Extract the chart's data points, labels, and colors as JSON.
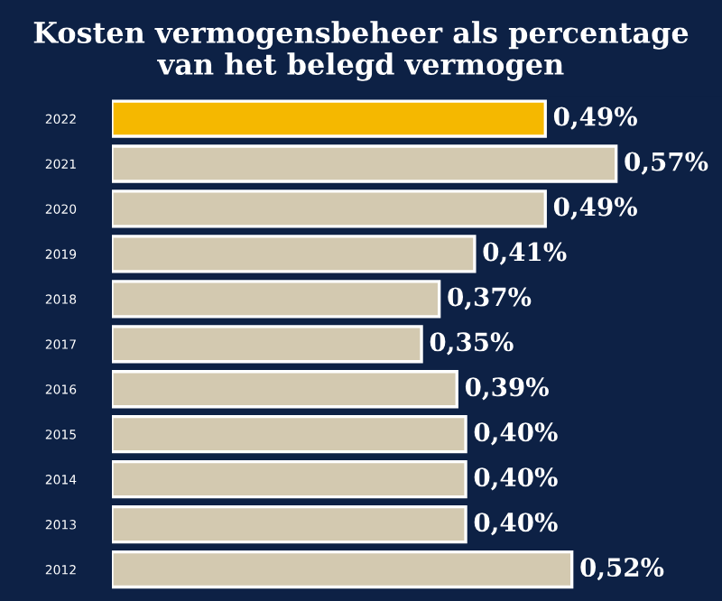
{
  "chart_data": {
    "type": "bar",
    "orientation": "horizontal",
    "title": "Kosten vermogensbeheer als percentage\nvan het belegd vermogen",
    "categories": [
      "2022",
      "2021",
      "2020",
      "2019",
      "2018",
      "2017",
      "2016",
      "2015",
      "2014",
      "2013",
      "2012"
    ],
    "values": [
      0.49,
      0.57,
      0.49,
      0.41,
      0.37,
      0.35,
      0.39,
      0.4,
      0.4,
      0.4,
      0.52
    ],
    "colors": [
      "#f5b800",
      "#d3c9b0",
      "#d3c9b0",
      "#d3c9b0",
      "#d3c9b0",
      "#d3c9b0",
      "#d3c9b0",
      "#d3c9b0",
      "#d3c9b0",
      "#d3c9b0",
      "#d3c9b0"
    ],
    "value_labels": [
      "0,49%",
      "0,57%",
      "0,49%",
      "0,41%",
      "0,37%",
      "0,35%",
      "0,39%",
      "0,40%",
      "0,40%",
      "0,40%",
      "0,52%"
    ],
    "grid": false,
    "legend": false
  }
}
